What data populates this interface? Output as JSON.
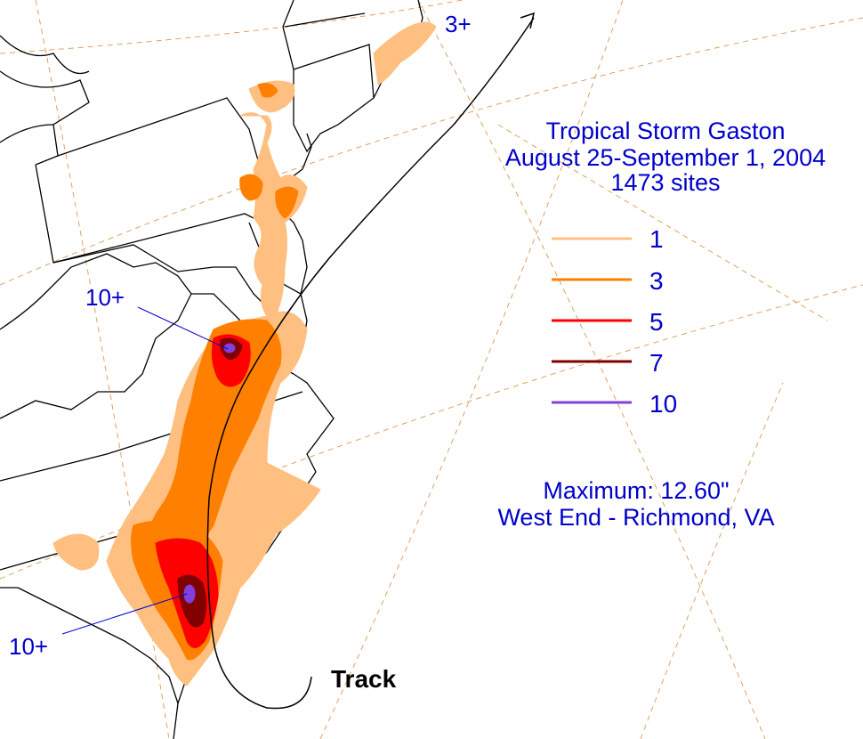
{
  "title": {
    "line1": "Tropical Storm Gaston",
    "line2": "August 25-September 1, 2004",
    "line3": "1473 sites"
  },
  "legend": [
    {
      "label": "1",
      "color": "#ffbf80"
    },
    {
      "label": "3",
      "color": "#ff8000"
    },
    {
      "label": "5",
      "color": "#ff0000"
    },
    {
      "label": "7",
      "color": "#800000"
    },
    {
      "label": "10",
      "color": "#8040e0"
    }
  ],
  "maximum": {
    "label": "Maximum:  12.60\"",
    "location": "West End - Richmond, VA"
  },
  "callouts": {
    "virginia": "10+",
    "south_carolina": "10+",
    "new_england": "3+"
  },
  "track_label": "Track",
  "colors": {
    "text": "#0000cc",
    "track": "#000000",
    "grid": "#e0a060",
    "border": "#000000"
  }
}
